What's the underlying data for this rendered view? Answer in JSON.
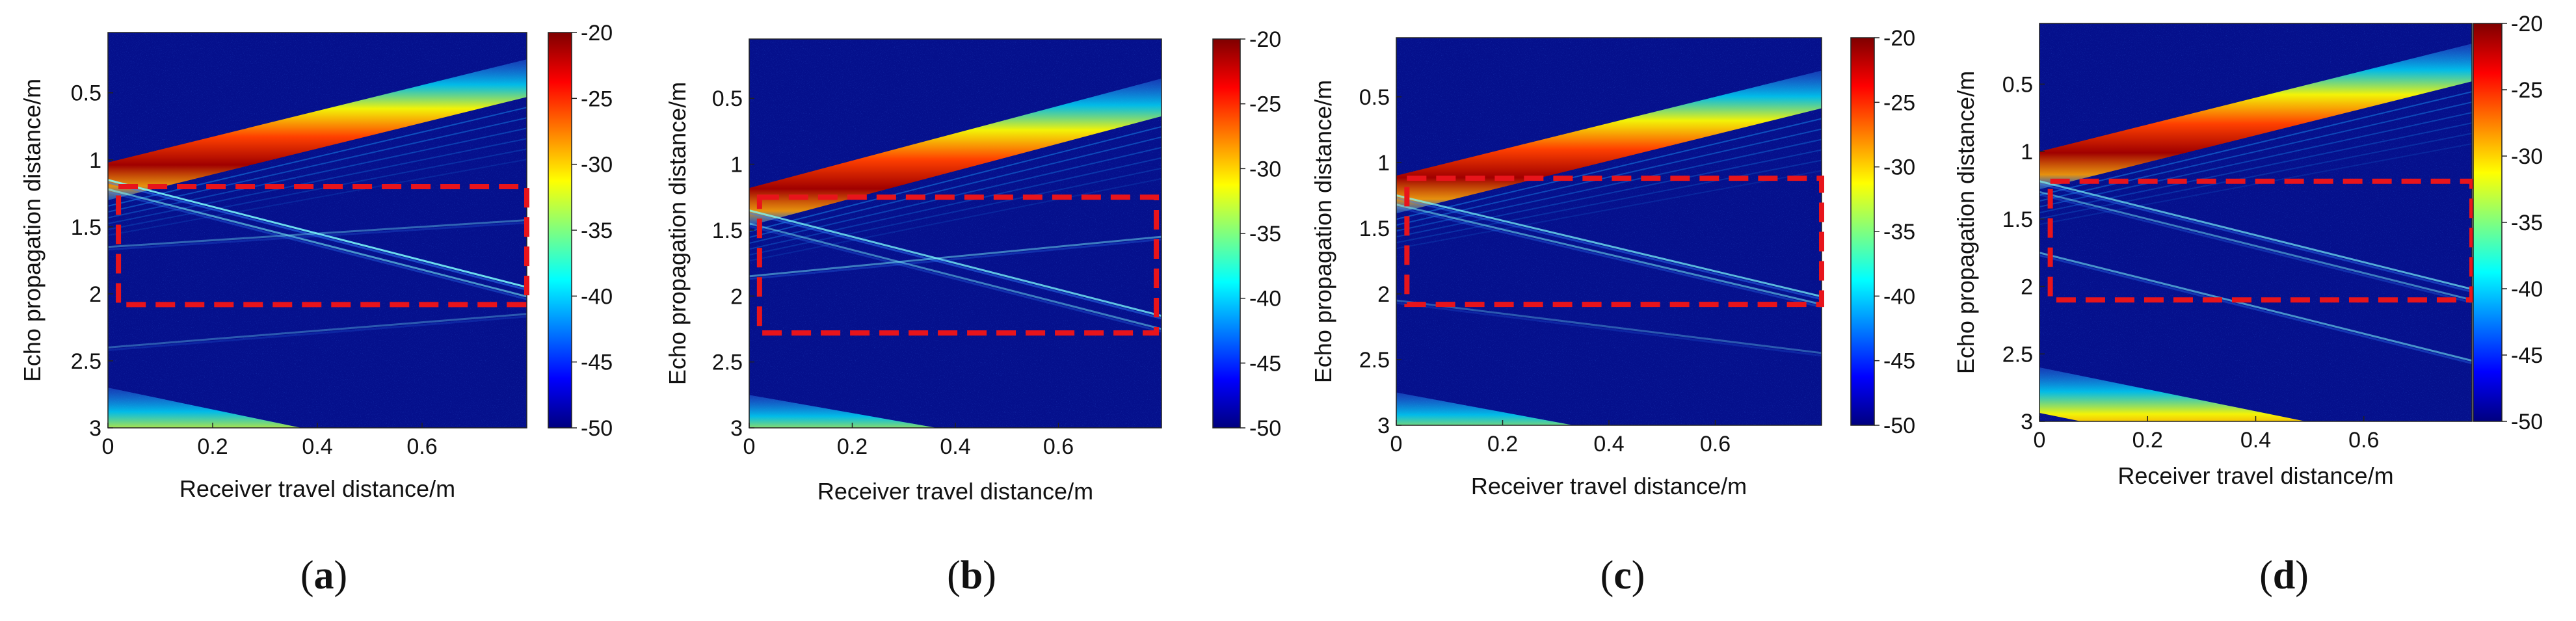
{
  "figure": {
    "colormap": "jet",
    "colormap_stops": [
      "#00007f",
      "#0000ff",
      "#007fff",
      "#00ffff",
      "#7fff7f",
      "#ffff00",
      "#ff7f00",
      "#ff0000",
      "#7f0000"
    ],
    "highlight_color": "#e8141b"
  },
  "chart_data": [
    {
      "type": "heatmap",
      "panel_label": "(a)",
      "panel_letter": "a",
      "xlabel": "Receiver travel distance/m",
      "ylabel": "Echo propagation distance/m",
      "xlim": [
        0,
        0.8
      ],
      "ylim": [
        0.05,
        3
      ],
      "y_inverted": true,
      "xticks": [
        0,
        0.2,
        0.4,
        0.6
      ],
      "xtick_labels": [
        "0",
        "0.2",
        "0.4",
        "0.6"
      ],
      "yticks": [
        0.5,
        1,
        1.5,
        2,
        2.5,
        3
      ],
      "ytick_labels": [
        "0.5",
        "1",
        "1.5",
        "2",
        "2.5",
        "3"
      ],
      "colorbar": {
        "range": [
          -50,
          -20
        ],
        "ticks": [
          -20,
          -25,
          -30,
          -35,
          -40,
          -45,
          -50
        ],
        "tick_labels": [
          "-20",
          "-25",
          "-30",
          "-35",
          "-40",
          "-45",
          "-50"
        ]
      },
      "direct_wave": {
        "y_start": 1.02,
        "y_end": 0.25
      },
      "bottom_wave": {
        "y_start": 2.7,
        "y_end": 3.35
      },
      "reflections": [
        {
          "y_start": 1.15,
          "y_end": 1.95,
          "strength": 0.85
        },
        {
          "y_start": 1.22,
          "y_end": 2.02,
          "strength": 0.55
        },
        {
          "y_start": 1.65,
          "y_end": 1.45,
          "strength": 0.35
        },
        {
          "y_start": 2.4,
          "y_end": 2.15,
          "strength": 0.3
        }
      ],
      "region": {
        "x": [
          0.02,
          0.8
        ],
        "y": [
          1.2,
          2.08
        ]
      }
    },
    {
      "type": "heatmap",
      "panel_label": "(b)",
      "panel_letter": "b",
      "xlabel": "Receiver travel distance/m",
      "ylabel": "Echo propagation distance/m",
      "xlim": [
        0,
        0.8
      ],
      "ylim": [
        0.05,
        3
      ],
      "y_inverted": true,
      "xticks": [
        0,
        0.2,
        0.4,
        0.6
      ],
      "xtick_labels": [
        "0",
        "0.2",
        "0.4",
        "0.6"
      ],
      "yticks": [
        0.5,
        1,
        1.5,
        2,
        2.5,
        3
      ],
      "ytick_labels": [
        "0.5",
        "1",
        "1.5",
        "2",
        "2.5",
        "3"
      ],
      "colorbar": {
        "range": [
          -50,
          -20
        ],
        "ticks": [
          -20,
          -25,
          -30,
          -35,
          -40,
          -45,
          -50
        ],
        "tick_labels": [
          "-20",
          "-25",
          "-30",
          "-35",
          "-40",
          "-45",
          "-50"
        ]
      },
      "direct_wave": {
        "y_start": 1.18,
        "y_end": 0.35
      },
      "bottom_wave": {
        "y_start": 2.75,
        "y_end": 3.3
      },
      "reflections": [
        {
          "y_start": 1.35,
          "y_end": 2.15,
          "strength": 0.75
        },
        {
          "y_start": 1.45,
          "y_end": 2.25,
          "strength": 0.45
        },
        {
          "y_start": 1.85,
          "y_end": 1.55,
          "strength": 0.45
        }
      ],
      "region": {
        "x": [
          0.02,
          0.79
        ],
        "y": [
          1.25,
          2.28
        ]
      }
    },
    {
      "type": "heatmap",
      "panel_label": "(c)",
      "panel_letter": "c",
      "xlabel": "Receiver travel distance/m",
      "ylabel": "Echo propagation distance/m",
      "xlim": [
        0,
        0.8
      ],
      "ylim": [
        0.05,
        3
      ],
      "y_inverted": true,
      "xticks": [
        0,
        0.2,
        0.4,
        0.6
      ],
      "xtick_labels": [
        "0",
        "0.2",
        "0.4",
        "0.6"
      ],
      "yticks": [
        0.5,
        1,
        1.5,
        2,
        2.5,
        3
      ],
      "ytick_labels": [
        "0.5",
        "1",
        "1.5",
        "2",
        "2.5",
        "3"
      ],
      "colorbar": {
        "range": [
          -50,
          -20
        ],
        "ticks": [
          -20,
          -25,
          -30,
          -35,
          -40,
          -45,
          -50
        ],
        "tick_labels": [
          "-20",
          "-25",
          "-30",
          "-35",
          "-40",
          "-45",
          "-50"
        ]
      },
      "direct_wave": {
        "y_start": 1.1,
        "y_end": 0.3
      },
      "bottom_wave": {
        "y_start": 2.75,
        "y_end": 3.35
      },
      "reflections": [
        {
          "y_start": 1.25,
          "y_end": 2.02,
          "strength": 0.7
        },
        {
          "y_start": 1.32,
          "y_end": 2.08,
          "strength": 0.5
        },
        {
          "y_start": 2.05,
          "y_end": 2.45,
          "strength": 0.3
        }
      ],
      "region": {
        "x": [
          0.02,
          0.8
        ],
        "y": [
          1.12,
          2.08
        ]
      }
    },
    {
      "type": "heatmap",
      "panel_label": "(d)",
      "panel_letter": "d",
      "xlabel": "Receiver travel distance/m",
      "ylabel": "Echo propagation distance/m",
      "xlim": [
        0,
        0.8
      ],
      "ylim": [
        0.05,
        3
      ],
      "y_inverted": true,
      "xticks": [
        0,
        0.2,
        0.4,
        0.6
      ],
      "xtick_labels": [
        "0",
        "0.2",
        "0.4",
        "0.6"
      ],
      "yticks": [
        0.5,
        1,
        1.5,
        2,
        2.5,
        3
      ],
      "ytick_labels": [
        "0.5",
        "1",
        "1.5",
        "2",
        "2.5",
        "3"
      ],
      "colorbar": {
        "range": [
          -50,
          -20
        ],
        "ticks": [
          -20,
          -25,
          -30,
          -35,
          -40,
          -45,
          -50
        ],
        "tick_labels": [
          "-20",
          "-25",
          "-30",
          "-35",
          "-40",
          "-45",
          "-50"
        ]
      },
      "direct_wave": {
        "y_start": 1.0,
        "y_end": 0.2
      },
      "bottom_wave": {
        "y_start": 2.6,
        "y_end": 3.25
      },
      "reflections": [
        {
          "y_start": 1.22,
          "y_end": 2.02,
          "strength": 0.65
        },
        {
          "y_start": 1.3,
          "y_end": 2.1,
          "strength": 0.45
        },
        {
          "y_start": 1.75,
          "y_end": 2.55,
          "strength": 0.55
        }
      ],
      "region": {
        "x": [
          0.02,
          0.8
        ],
        "y": [
          1.22,
          2.1
        ]
      }
    }
  ]
}
